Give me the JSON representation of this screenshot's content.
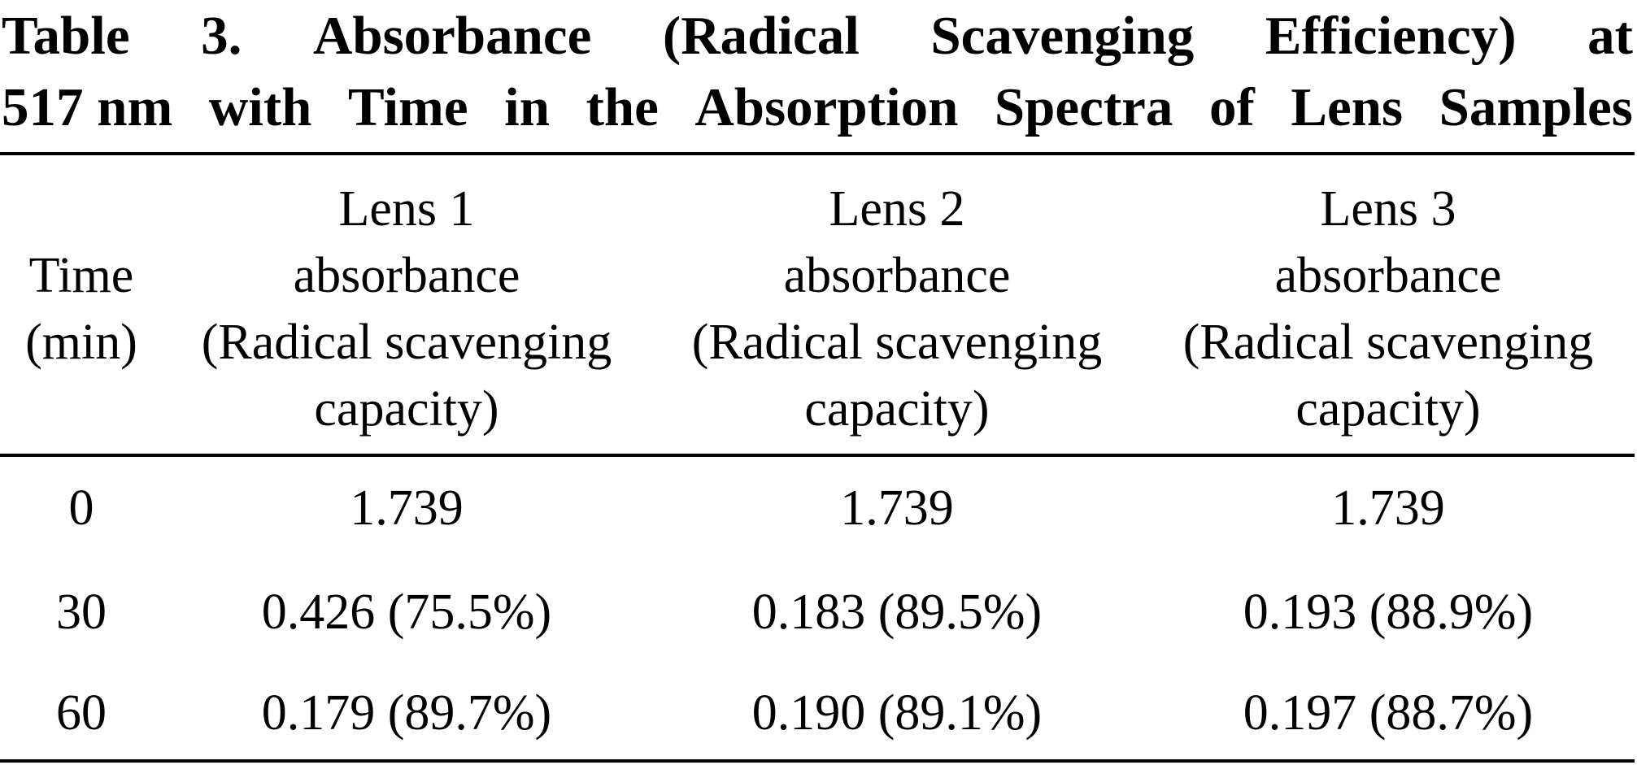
{
  "caption": {
    "line1": [
      "Table",
      "3.",
      "Absorbance",
      "(Radical",
      "Scavenging",
      "Efficiency)",
      "at"
    ],
    "line2": [
      "517 nm",
      "with",
      "Time",
      "in",
      "the",
      "Absorption",
      "Spectra",
      "of",
      "Lens",
      "Samples"
    ]
  },
  "table": {
    "headers": {
      "time": [
        "Time",
        "(min)"
      ],
      "lens1": [
        "Lens 1",
        "absorbance",
        "(Radical scavenging",
        "capacity)"
      ],
      "lens2": [
        "Lens 2",
        "absorbance",
        "(Radical scavenging",
        "capacity)"
      ],
      "lens3": [
        "Lens 3",
        "absorbance",
        "(Radical scavenging",
        "capacity)"
      ]
    },
    "rows": [
      {
        "time": "0",
        "lens1": "1.739",
        "lens2": "1.739",
        "lens3": "1.739"
      },
      {
        "time": "30",
        "lens1": "0.426 (75.5%)",
        "lens2": "0.183 (89.5%)",
        "lens3": "0.193 (88.9%)"
      },
      {
        "time": "60",
        "lens1": "0.179 (89.7%)",
        "lens2": "0.190 (89.1%)",
        "lens3": "0.197 (88.7%)"
      }
    ]
  }
}
